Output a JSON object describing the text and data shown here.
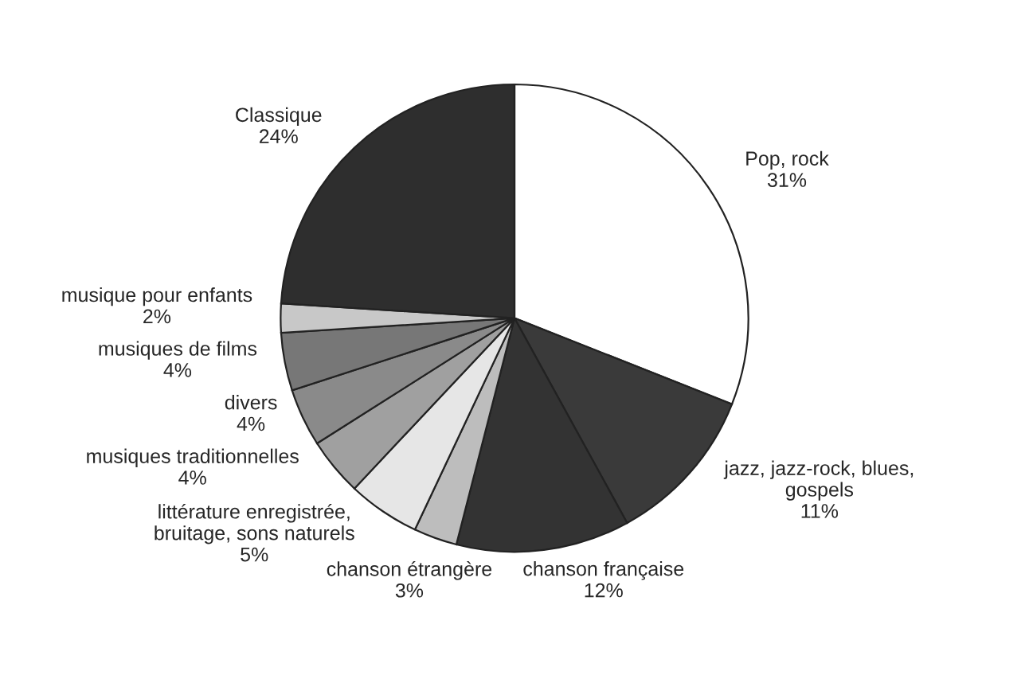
{
  "chart_data": {
    "type": "pie",
    "categories": [
      "Pop, rock",
      "jazz, jazz-rock, blues,\ngospels",
      "chanson française",
      "chanson étrangère",
      "littérature enregistrée,\nbruitage, sons naturels",
      "musiques traditionnelles",
      "divers",
      "musiques de films",
      "musique pour enfants",
      "Classique"
    ],
    "values": [
      31,
      11,
      12,
      3,
      5,
      4,
      4,
      4,
      2,
      24
    ],
    "value_labels": [
      "31%",
      "11%",
      "12%",
      "3%",
      "5%",
      "4%",
      "4%",
      "4%",
      "2%",
      "24%"
    ],
    "colors": [
      "#ffffff",
      "#3a3a3a",
      "#333333",
      "#bdbdbd",
      "#e6e6e6",
      "#a0a0a0",
      "#8a8a8a",
      "#777777",
      "#c8c8c8",
      "#2e2e2e"
    ]
  }
}
